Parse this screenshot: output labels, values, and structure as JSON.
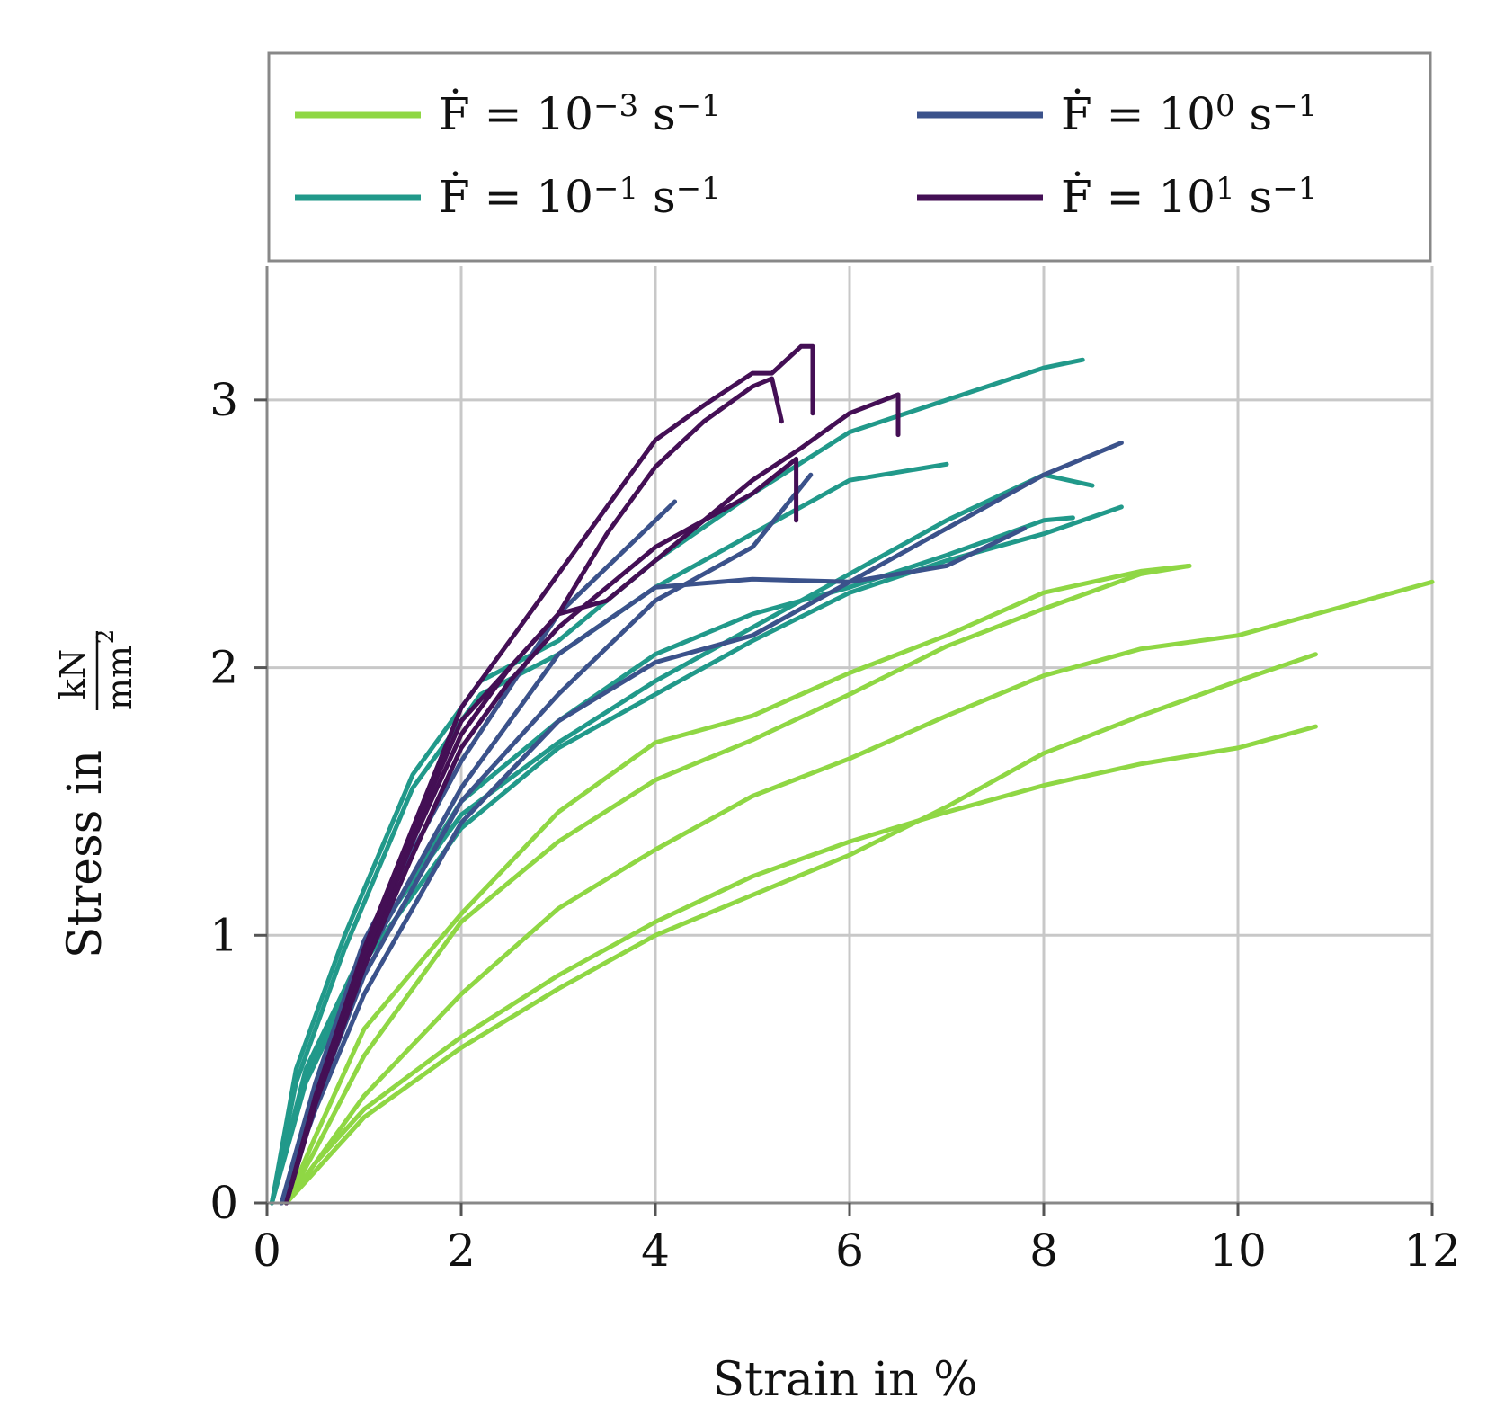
{
  "chart_data": {
    "type": "line",
    "xlabel": "Strain in %",
    "ylabel_prefix": "Stress in",
    "ylabel_unit_num": "kN",
    "ylabel_unit_den": "mm",
    "ylabel_unit_den_exp": "2",
    "xlim": [
      0,
      12
    ],
    "ylim": [
      0,
      3.5
    ],
    "xticks": [
      0,
      2,
      4,
      6,
      8,
      10,
      12
    ],
    "yticks": [
      0,
      1,
      2,
      3
    ],
    "xtick_labels": [
      "0",
      "2",
      "4",
      "6",
      "8",
      "10",
      "12"
    ],
    "ytick_labels": [
      "0",
      "1",
      "2",
      "3"
    ],
    "grid": true,
    "legend_placement": "top",
    "legend": [
      {
        "base": "Ḟ = 10",
        "exp": "−3",
        "unit": "s",
        "unit_exp": "−1",
        "color": "#8fd744"
      },
      {
        "base": "Ḟ = 10",
        "exp": "0",
        "unit": "s",
        "unit_exp": "−1",
        "color": "#3b528b"
      },
      {
        "base": "Ḟ = 10",
        "exp": "−1",
        "unit": "s",
        "unit_exp": "−1",
        "color": "#21998a"
      },
      {
        "base": "Ḟ = 10",
        "exp": "1",
        "unit": "s",
        "unit_exp": "−1",
        "color": "#440f55"
      }
    ],
    "series": [
      {
        "group": 0,
        "color": "#8fd744",
        "points": [
          [
            0.2,
            0
          ],
          [
            0.5,
            0.15
          ],
          [
            1,
            0.35
          ],
          [
            2,
            0.62
          ],
          [
            3,
            0.85
          ],
          [
            4,
            1.05
          ],
          [
            5,
            1.22
          ],
          [
            6,
            1.35
          ],
          [
            7,
            1.46
          ],
          [
            8,
            1.56
          ],
          [
            9,
            1.64
          ],
          [
            10,
            1.7
          ],
          [
            10.8,
            1.78
          ]
        ]
      },
      {
        "group": 0,
        "color": "#8fd744",
        "points": [
          [
            0.2,
            0
          ],
          [
            0.5,
            0.12
          ],
          [
            1,
            0.32
          ],
          [
            2,
            0.58
          ],
          [
            3,
            0.8
          ],
          [
            4,
            1.0
          ],
          [
            5,
            1.15
          ],
          [
            6,
            1.3
          ],
          [
            7,
            1.48
          ],
          [
            8,
            1.68
          ],
          [
            9,
            1.82
          ],
          [
            10,
            1.95
          ],
          [
            10.8,
            2.05
          ]
        ]
      },
      {
        "group": 0,
        "color": "#8fd744",
        "points": [
          [
            0.2,
            0
          ],
          [
            0.5,
            0.15
          ],
          [
            1,
            0.4
          ],
          [
            2,
            0.78
          ],
          [
            3,
            1.1
          ],
          [
            4,
            1.32
          ],
          [
            5,
            1.52
          ],
          [
            6,
            1.66
          ],
          [
            7,
            1.82
          ],
          [
            8,
            1.97
          ],
          [
            9,
            2.07
          ],
          [
            10,
            2.12
          ],
          [
            11,
            2.22
          ],
          [
            12,
            2.32
          ]
        ]
      },
      {
        "group": 0,
        "color": "#8fd744",
        "points": [
          [
            0.2,
            0
          ],
          [
            0.5,
            0.2
          ],
          [
            1,
            0.55
          ],
          [
            2,
            1.05
          ],
          [
            3,
            1.35
          ],
          [
            4,
            1.58
          ],
          [
            5,
            1.73
          ],
          [
            6,
            1.9
          ],
          [
            7,
            2.08
          ],
          [
            8,
            2.22
          ],
          [
            9,
            2.35
          ],
          [
            9.5,
            2.38
          ]
        ]
      },
      {
        "group": 0,
        "color": "#8fd744",
        "points": [
          [
            0.2,
            0
          ],
          [
            0.5,
            0.25
          ],
          [
            1,
            0.65
          ],
          [
            2,
            1.08
          ],
          [
            3,
            1.46
          ],
          [
            4,
            1.72
          ],
          [
            5,
            1.82
          ],
          [
            6,
            1.98
          ],
          [
            7,
            2.12
          ],
          [
            8,
            2.28
          ],
          [
            9,
            2.36
          ],
          [
            9.5,
            2.38
          ]
        ]
      },
      {
        "group": 1,
        "color": "#3b528b",
        "points": [
          [
            0.15,
            0
          ],
          [
            0.5,
            0.35
          ],
          [
            1,
            0.78
          ],
          [
            2,
            1.42
          ],
          [
            3,
            1.8
          ],
          [
            4,
            2.02
          ],
          [
            5,
            2.12
          ],
          [
            6,
            2.32
          ],
          [
            7,
            2.52
          ],
          [
            8,
            2.72
          ],
          [
            8.8,
            2.84
          ]
        ]
      },
      {
        "group": 1,
        "color": "#3b528b",
        "points": [
          [
            0.15,
            0
          ],
          [
            0.5,
            0.4
          ],
          [
            1,
            0.9
          ],
          [
            2,
            1.55
          ],
          [
            3,
            2.05
          ],
          [
            4,
            2.3
          ],
          [
            5,
            2.33
          ],
          [
            6,
            2.32
          ],
          [
            7,
            2.38
          ],
          [
            7.8,
            2.52
          ]
        ]
      },
      {
        "group": 1,
        "color": "#3b528b",
        "points": [
          [
            0.15,
            0
          ],
          [
            0.5,
            0.45
          ],
          [
            1,
            0.98
          ],
          [
            2,
            1.65
          ],
          [
            3,
            2.2
          ],
          [
            4.2,
            2.62
          ]
        ]
      },
      {
        "group": 1,
        "color": "#3b528b",
        "points": [
          [
            0.15,
            0
          ],
          [
            0.5,
            0.38
          ],
          [
            1,
            0.85
          ],
          [
            2,
            1.5
          ],
          [
            3,
            1.9
          ],
          [
            4,
            2.25
          ],
          [
            5,
            2.45
          ],
          [
            5.6,
            2.72
          ]
        ]
      },
      {
        "group": 2,
        "color": "#21998a",
        "points": [
          [
            0.05,
            0
          ],
          [
            0.3,
            0.5
          ],
          [
            0.8,
            1.0
          ],
          [
            1.5,
            1.6
          ],
          [
            2.2,
            1.95
          ],
          [
            3,
            2.1
          ],
          [
            4,
            2.4
          ],
          [
            5,
            2.65
          ],
          [
            6,
            2.88
          ],
          [
            7,
            3.0
          ],
          [
            8,
            3.12
          ],
          [
            8.4,
            3.15
          ]
        ]
      },
      {
        "group": 2,
        "color": "#21998a",
        "points": [
          [
            0.05,
            0
          ],
          [
            0.3,
            0.45
          ],
          [
            0.8,
            0.95
          ],
          [
            1.5,
            1.55
          ],
          [
            2.2,
            1.9
          ],
          [
            3,
            2.05
          ],
          [
            4,
            2.3
          ],
          [
            5,
            2.5
          ],
          [
            6,
            2.7
          ],
          [
            7,
            2.76
          ]
        ]
      },
      {
        "group": 2,
        "color": "#21998a",
        "points": [
          [
            0.05,
            0
          ],
          [
            0.4,
            0.5
          ],
          [
            1,
            0.95
          ],
          [
            2,
            1.45
          ],
          [
            3,
            1.72
          ],
          [
            4,
            1.95
          ],
          [
            5,
            2.15
          ],
          [
            6,
            2.35
          ],
          [
            7,
            2.55
          ],
          [
            8,
            2.72
          ],
          [
            8.5,
            2.68
          ]
        ]
      },
      {
        "group": 2,
        "color": "#21998a",
        "points": [
          [
            0.05,
            0
          ],
          [
            0.4,
            0.45
          ],
          [
            1,
            0.9
          ],
          [
            2,
            1.4
          ],
          [
            3,
            1.7
          ],
          [
            4,
            1.9
          ],
          [
            5,
            2.1
          ],
          [
            6,
            2.28
          ],
          [
            7,
            2.4
          ],
          [
            8,
            2.5
          ],
          [
            8.8,
            2.6
          ]
        ]
      },
      {
        "group": 2,
        "color": "#21998a",
        "points": [
          [
            0.05,
            0
          ],
          [
            0.4,
            0.48
          ],
          [
            1,
            0.92
          ],
          [
            2,
            1.5
          ],
          [
            3,
            1.8
          ],
          [
            4,
            2.05
          ],
          [
            5,
            2.2
          ],
          [
            6,
            2.3
          ],
          [
            7,
            2.42
          ],
          [
            8,
            2.55
          ],
          [
            8.3,
            2.56
          ]
        ]
      },
      {
        "group": 3,
        "color": "#440f55",
        "points": [
          [
            0.2,
            0
          ],
          [
            0.5,
            0.4
          ],
          [
            1,
            0.95
          ],
          [
            1.5,
            1.4
          ],
          [
            2,
            1.85
          ],
          [
            2.5,
            2.1
          ],
          [
            3,
            2.35
          ],
          [
            3.5,
            2.6
          ],
          [
            4,
            2.85
          ],
          [
            4.5,
            2.98
          ],
          [
            5,
            3.1
          ],
          [
            5.2,
            3.1
          ],
          [
            5.5,
            3.2
          ],
          [
            5.62,
            3.2
          ],
          [
            5.62,
            2.95
          ]
        ]
      },
      {
        "group": 3,
        "color": "#440f55",
        "points": [
          [
            0.2,
            0
          ],
          [
            0.5,
            0.38
          ],
          [
            1,
            0.9
          ],
          [
            1.5,
            1.35
          ],
          [
            2,
            1.75
          ],
          [
            2.5,
            2.0
          ],
          [
            3,
            2.2
          ],
          [
            3.5,
            2.5
          ],
          [
            4,
            2.75
          ],
          [
            4.5,
            2.92
          ],
          [
            5,
            3.05
          ],
          [
            5.2,
            3.08
          ],
          [
            5.3,
            2.92
          ]
        ]
      },
      {
        "group": 3,
        "color": "#440f55",
        "points": [
          [
            0.2,
            0
          ],
          [
            0.5,
            0.4
          ],
          [
            1,
            0.92
          ],
          [
            1.5,
            1.38
          ],
          [
            2,
            1.8
          ],
          [
            2.5,
            2.0
          ],
          [
            3,
            2.2
          ],
          [
            3.5,
            2.25
          ],
          [
            4,
            2.4
          ],
          [
            4.5,
            2.55
          ],
          [
            5,
            2.7
          ],
          [
            5.5,
            2.82
          ],
          [
            6,
            2.95
          ],
          [
            6.5,
            3.02
          ],
          [
            6.5,
            2.87
          ]
        ]
      },
      {
        "group": 3,
        "color": "#440f55",
        "points": [
          [
            0.2,
            0
          ],
          [
            0.5,
            0.37
          ],
          [
            1,
            0.88
          ],
          [
            1.5,
            1.3
          ],
          [
            2,
            1.7
          ],
          [
            2.5,
            1.95
          ],
          [
            3,
            2.15
          ],
          [
            3.5,
            2.3
          ],
          [
            4,
            2.45
          ],
          [
            4.5,
            2.55
          ],
          [
            5,
            2.65
          ],
          [
            5.45,
            2.78
          ],
          [
            5.45,
            2.55
          ]
        ]
      }
    ]
  }
}
